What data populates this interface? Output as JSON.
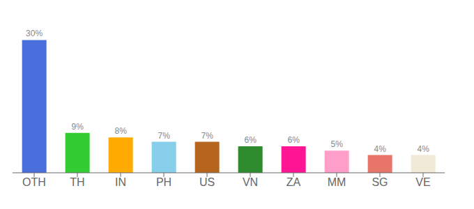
{
  "chart_data": {
    "type": "bar",
    "categories": [
      "OTH",
      "TH",
      "IN",
      "PH",
      "US",
      "VN",
      "ZA",
      "MM",
      "SG",
      "VE"
    ],
    "values": [
      30,
      9,
      8,
      7,
      7,
      6,
      6,
      5,
      4,
      4
    ],
    "value_labels": [
      "30%",
      "9%",
      "8%",
      "7%",
      "7%",
      "6%",
      "6%",
      "5%",
      "4%",
      "4%"
    ],
    "colors": [
      "#4a6fdc",
      "#33cc33",
      "#ffaa00",
      "#87ceeb",
      "#b5651d",
      "#2d8a2d",
      "#ff1493",
      "#ff9ec8",
      "#e8756a",
      "#f0ead6"
    ],
    "ylim": [
      0,
      34
    ],
    "data_labels": true,
    "tick_labels": "x",
    "grid": false
  }
}
